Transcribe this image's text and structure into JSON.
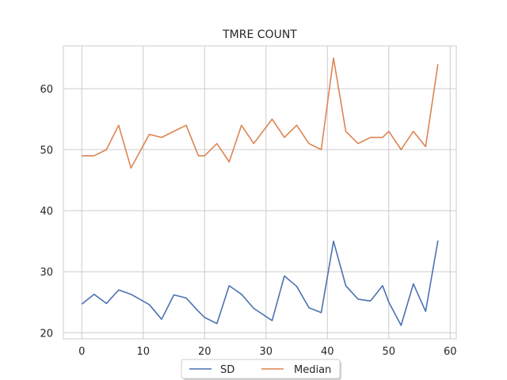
{
  "chart_data": {
    "type": "line",
    "title": "TMRE COUNT",
    "xlabel": "",
    "ylabel": "",
    "xlim": [
      -3,
      61
    ],
    "ylim": [
      19,
      67
    ],
    "xticks": [
      0,
      10,
      20,
      30,
      40,
      50,
      60
    ],
    "yticks": [
      20,
      30,
      40,
      50,
      60
    ],
    "grid": true,
    "legend_position": "bottom-center",
    "x": [
      0,
      2,
      4,
      6,
      8,
      11,
      13,
      15,
      17,
      19,
      20,
      22,
      24,
      26,
      28,
      31,
      33,
      35,
      37,
      39,
      41,
      43,
      45,
      47,
      49,
      50,
      52,
      54,
      56,
      58
    ],
    "series": [
      {
        "name": "SD",
        "color": "#4c72b0",
        "values": [
          24.7,
          26.3,
          24.8,
          27.0,
          26.3,
          24.6,
          22.2,
          26.2,
          25.7,
          23.5,
          22.5,
          21.5,
          27.7,
          26.3,
          24.0,
          22.0,
          29.3,
          27.6,
          24.1,
          23.3,
          35.0,
          27.7,
          25.5,
          25.2,
          27.7,
          25.0,
          21.2,
          28.0,
          23.5,
          35.1
        ]
      },
      {
        "name": "Median",
        "color": "#dd8452",
        "values": [
          49,
          49,
          50,
          54,
          47,
          52.5,
          52,
          53,
          54,
          49,
          49,
          51,
          48,
          54,
          51,
          55,
          52,
          54,
          51,
          50,
          65,
          53,
          51,
          52,
          52,
          53,
          50,
          53,
          50.5,
          64
        ]
      }
    ]
  }
}
